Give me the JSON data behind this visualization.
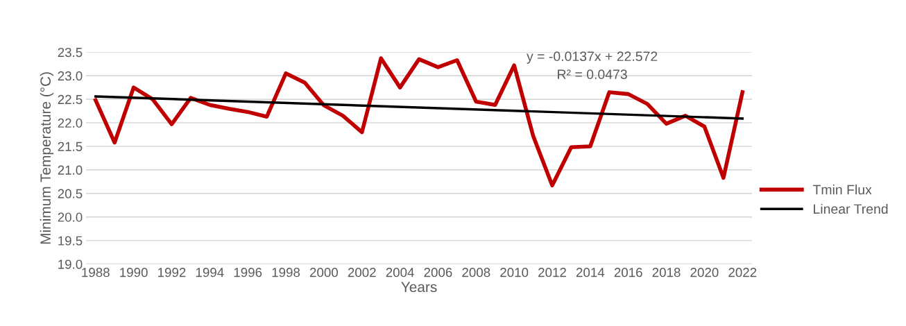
{
  "chart_data": {
    "type": "line",
    "xlabel": "Years",
    "ylabel": "Minimum Temperature (°C)",
    "x": [
      1988,
      1989,
      1990,
      1991,
      1992,
      1993,
      1994,
      1995,
      1996,
      1997,
      1998,
      1999,
      2000,
      2001,
      2002,
      2003,
      2004,
      2005,
      2006,
      2007,
      2008,
      2009,
      2010,
      2011,
      2012,
      2013,
      2014,
      2015,
      2016,
      2017,
      2018,
      2019,
      2020,
      2021,
      2022
    ],
    "series": [
      {
        "name": "Tmin Flux",
        "color": "#c00000",
        "values": [
          22.48,
          21.58,
          22.75,
          22.5,
          21.97,
          22.53,
          22.38,
          22.3,
          22.23,
          22.13,
          23.05,
          22.85,
          22.37,
          22.15,
          21.8,
          23.37,
          22.75,
          23.35,
          23.18,
          23.33,
          22.45,
          22.38,
          23.22,
          21.72,
          20.67,
          21.48,
          21.5,
          22.65,
          22.61,
          22.4,
          21.98,
          22.15,
          21.92,
          20.83,
          22.65
        ]
      },
      {
        "name": "Linear Trend",
        "color": "#000000",
        "type": "line",
        "x": [
          1988,
          2022
        ],
        "values": [
          22.56,
          22.09
        ]
      }
    ],
    "xlim": [
      1987.5,
      2022.5
    ],
    "xticks": [
      1988,
      1990,
      1992,
      1994,
      1996,
      1998,
      2000,
      2002,
      2004,
      2006,
      2008,
      2010,
      2012,
      2014,
      2016,
      2018,
      2020,
      2022
    ],
    "ylim": [
      19.0,
      23.5
    ],
    "yticks": [
      {
        "value": 19.0,
        "label": "19.0"
      },
      {
        "value": 19.5,
        "label": "19.5"
      },
      {
        "value": 20.0,
        "label": "20.0"
      },
      {
        "value": 20.5,
        "label": "20.5"
      },
      {
        "value": 21.0,
        "label": "21.0"
      },
      {
        "value": 21.5,
        "label": "21.5"
      },
      {
        "value": 22.0,
        "label": "22.0"
      },
      {
        "value": 22.5,
        "label": "22.5"
      },
      {
        "value": 23.0,
        "label": "23.0"
      },
      {
        "value": 23.5,
        "label": "23.5"
      }
    ],
    "annotations": [
      "y = -0.0137x + 22.572",
      "R² = 0.0473"
    ],
    "grid": "y",
    "legend": "right",
    "marker": "none",
    "line_style": "solid"
  }
}
